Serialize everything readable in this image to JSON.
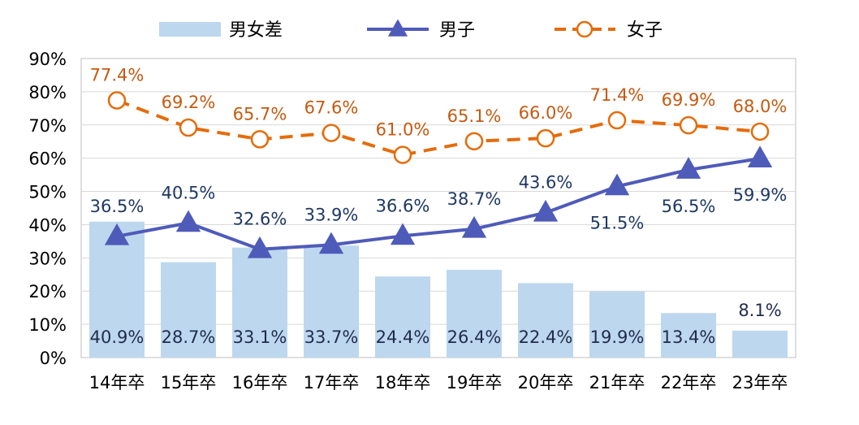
{
  "chart_data": {
    "type": "bar+line",
    "categories": [
      "14年卒",
      "15年卒",
      "16年卒",
      "17年卒",
      "18年卒",
      "19年卒",
      "20年卒",
      "21年卒",
      "22年卒",
      "23年卒"
    ],
    "series": [
      {
        "name": "男女差",
        "type": "bar",
        "color": "#BDD7EE",
        "values": [
          40.9,
          28.7,
          33.1,
          33.7,
          24.4,
          26.4,
          22.4,
          19.9,
          13.4,
          8.1
        ],
        "labels": [
          "40.9%",
          "28.7%",
          "33.1%",
          "33.7%",
          "24.4%",
          "26.4%",
          "22.4%",
          "19.9%",
          "13.4%",
          "8.1%"
        ]
      },
      {
        "name": "男子",
        "type": "line",
        "marker": "triangle",
        "color": "#4F5BB9",
        "values": [
          36.5,
          40.5,
          32.6,
          33.9,
          36.6,
          38.7,
          43.6,
          51.5,
          56.5,
          59.9
        ],
        "labels": [
          "36.5%",
          "40.5%",
          "32.6%",
          "33.9%",
          "36.6%",
          "38.7%",
          "43.6%",
          "51.5%",
          "56.5%",
          "59.9%"
        ]
      },
      {
        "name": "女子",
        "type": "line",
        "marker": "open-circle",
        "dashed": true,
        "color": "#E46C0A",
        "values": [
          77.4,
          69.2,
          65.7,
          67.6,
          61.0,
          65.1,
          66.0,
          71.4,
          69.9,
          68.0
        ],
        "labels": [
          "77.4%",
          "69.2%",
          "65.7%",
          "67.6%",
          "61.0%",
          "65.1%",
          "66.0%",
          "71.4%",
          "69.9%",
          "68.0%"
        ]
      }
    ],
    "yticks": [
      "0%",
      "10%",
      "20%",
      "30%",
      "40%",
      "50%",
      "60%",
      "70%",
      "80%",
      "90%"
    ],
    "ylim": [
      0,
      90
    ],
    "grid": true,
    "legend_position": "top",
    "label_colors": {
      "male": "#1F3864",
      "female": "#C55A11",
      "bar": "#1F2C4D"
    }
  }
}
